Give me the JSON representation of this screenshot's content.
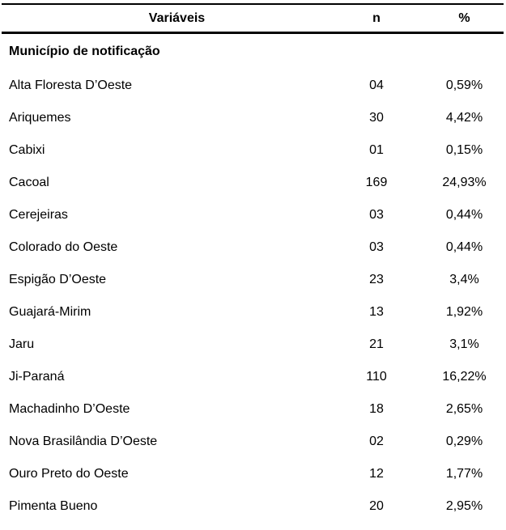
{
  "colors": {
    "text": "#000000",
    "rule": "#000000",
    "background": "#ffffff"
  },
  "table": {
    "columns": {
      "variable": "Variáveis",
      "n": "n",
      "pct": "%"
    },
    "section": "Município de notificação",
    "rows": [
      {
        "variable": "Alta Floresta D’Oeste",
        "n": "04",
        "pct": "0,59%"
      },
      {
        "variable": "Ariquemes",
        "n": "30",
        "pct": "4,42%"
      },
      {
        "variable": "Cabixi",
        "n": "01",
        "pct": "0,15%"
      },
      {
        "variable": "Cacoal",
        "n": "169",
        "pct": "24,93%"
      },
      {
        "variable": "Cerejeiras",
        "n": "03",
        "pct": "0,44%"
      },
      {
        "variable": "Colorado do Oeste",
        "n": "03",
        "pct": "0,44%"
      },
      {
        "variable": "Espigão D’Oeste",
        "n": "23",
        "pct": "3,4%"
      },
      {
        "variable": "Guajará-Mirim",
        "n": "13",
        "pct": "1,92%"
      },
      {
        "variable": "Jaru",
        "n": "21",
        "pct": "3,1%"
      },
      {
        "variable": "Ji-Paraná",
        "n": "110",
        "pct": "16,22%"
      },
      {
        "variable": "Machadinho D’Oeste",
        "n": "18",
        "pct": "2,65%"
      },
      {
        "variable": "Nova Brasilândia D’Oeste",
        "n": "02",
        "pct": "0,29%"
      },
      {
        "variable": "Ouro Preto do Oeste",
        "n": "12",
        "pct": "1,77%"
      },
      {
        "variable": "Pimenta Bueno",
        "n": "20",
        "pct": "2,95%"
      }
    ]
  }
}
